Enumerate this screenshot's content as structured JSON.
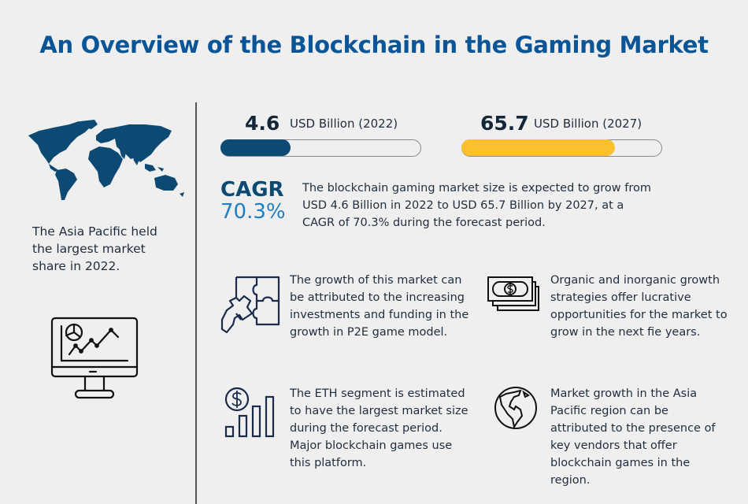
{
  "title": "An Overview of the Blockchain in the Gaming Market",
  "left_panel": {
    "map_icon": "world-map-icon",
    "region_text": "The Asia Pacific held the largest market share in 2022.",
    "monitor_icon": "monitor-chart-icon"
  },
  "stats": [
    {
      "value": "4.6",
      "label": "USD Billion (2022)",
      "bar_percent": 35,
      "bar_color": "#0d4a73"
    },
    {
      "value": "65.7",
      "label": "USD Billion (2027)",
      "bar_percent": 77,
      "bar_color": "#fbc02d"
    }
  ],
  "cagr": {
    "label": "CAGR",
    "value": "70.3%",
    "description": "The blockchain gaming market size is expected to grow from USD 4.6 Billion in 2022 to USD 65.7 Billion by 2027, at a CAGR of 70.3% during the forecast period."
  },
  "insights": [
    {
      "icon": "puzzle-hand-icon",
      "text": "The growth of this market can be attributed to the increasing investments and funding in the growth in P2E game model."
    },
    {
      "icon": "money-stack-icon",
      "text": "Organic and inorganic growth strategies offer lucrative opportunities for the market to grow in the next fie years."
    },
    {
      "icon": "dollar-bar-growth-icon",
      "text": "The ETH segment is estimated to have the largest market size during the forecast period. Major blockchain games use this platform."
    },
    {
      "icon": "globe-icon",
      "text": "Market growth in the Asia Pacific region can be attributed to the presence of key vendors that offer blockchain games in the region."
    }
  ],
  "colors": {
    "title": "#0a5597",
    "dark_blue": "#0d4a73",
    "light_blue": "#1f7fc4",
    "yellow": "#fbc02d",
    "background": "#efefef"
  }
}
